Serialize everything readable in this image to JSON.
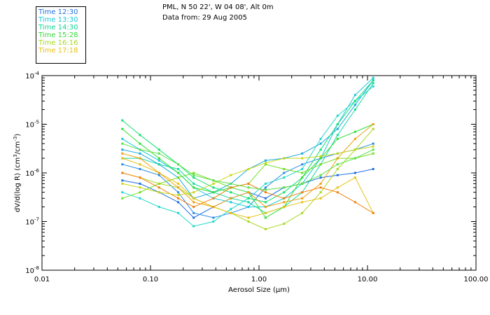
{
  "header": {
    "station": "PML, N 50 22', W 04 08', Alt 0m",
    "date": "Data from: 29 Aug 2005"
  },
  "chart_data": {
    "type": "line",
    "xscale": "log",
    "yscale": "log",
    "xlim": [
      0.01,
      100
    ],
    "ylim_exp": [
      -8,
      -4
    ],
    "xlabel": "Aerosol Size (μm)",
    "ylabel_main": "dV/d(log R) (cm",
    "ylabel_sup1": "3",
    "ylabel_mid": "/cm",
    "ylabel_sup2": "-3",
    "ylabel_end": ")",
    "x_ticks": [
      "0.01",
      "0.10",
      "1.00",
      "10.00",
      "100.00"
    ],
    "y_tick_base": "10",
    "y_tick_exps": [
      "-8",
      "-7",
      "-6",
      "-5",
      "-4"
    ],
    "legend_colors": [
      "#1f6fe0",
      "#18c8d8",
      "#10d890",
      "#38d838",
      "#a8d820",
      "#e8c010"
    ],
    "legend": [
      "Time 12:30",
      "Time 13:30",
      "Time 14:30",
      "Time 15:28",
      "Time 16:16",
      "Time 17:18"
    ],
    "x": [
      0.055,
      0.08,
      0.12,
      0.18,
      0.25,
      0.38,
      0.55,
      0.8,
      1.15,
      1.7,
      2.5,
      3.7,
      5.3,
      7.7,
      11.3
    ],
    "series": [
      {
        "name": "scan 1",
        "color": "#1f6fe0",
        "values": [
          7e-07,
          6e-07,
          4e-07,
          2.5e-07,
          1.2e-07,
          2e-07,
          3e-07,
          4e-07,
          3e-07,
          5e-07,
          6e-07,
          8e-07,
          9e-07,
          1e-06,
          1.2e-06
        ]
      },
      {
        "name": "scan 2",
        "color": "#2a8ae8",
        "values": [
          1.5e-06,
          1.2e-06,
          9e-07,
          4e-07,
          1.5e-07,
          1.2e-07,
          1.5e-07,
          2e-07,
          5e-07,
          1e-06,
          1.5e-06,
          2e-06,
          2.5e-06,
          3e-06,
          4e-06
        ]
      },
      {
        "name": "scan 3",
        "color": "#18a8e0",
        "values": [
          3e-06,
          2.5e-06,
          1.5e-06,
          8e-07,
          3e-07,
          4e-07,
          6e-07,
          1.2e-06,
          1.8e-06,
          2e-06,
          2.5e-06,
          4e-06,
          8e-06,
          2.5e-05,
          8e-05
        ]
      },
      {
        "name": "scan 4",
        "color": "#18c8d8",
        "values": [
          5e-06,
          3e-06,
          1.8e-06,
          1e-06,
          5e-07,
          3e-07,
          2.5e-07,
          2e-07,
          2e-07,
          3e-07,
          6e-07,
          2e-06,
          1e-05,
          4e-05,
          9e-05
        ]
      },
      {
        "name": "scan 5",
        "color": "#20d8c8",
        "values": [
          4e-07,
          3e-07,
          2e-07,
          1.5e-07,
          8e-08,
          1e-07,
          1.8e-07,
          3e-07,
          6e-07,
          8e-07,
          1.2e-06,
          5e-06,
          1.5e-05,
          3e-05,
          6e-05
        ]
      },
      {
        "name": "scan 6",
        "color": "#10d8a0",
        "values": [
          2e-06,
          2e-06,
          1.5e-06,
          1.2e-06,
          6e-07,
          4e-07,
          3e-07,
          2.5e-07,
          1.5e-07,
          2e-07,
          4e-07,
          1.5e-06,
          6e-06,
          2e-05,
          7e-05
        ]
      },
      {
        "name": "scan 7",
        "color": "#10e070",
        "values": [
          1.2e-05,
          6e-06,
          3e-06,
          1.5e-06,
          8e-07,
          5e-07,
          4e-07,
          3e-07,
          2.5e-07,
          4e-07,
          8e-07,
          3e-06,
          1e-05,
          3e-05,
          8e-05
        ]
      },
      {
        "name": "scan 8",
        "color": "#30e030",
        "values": [
          8e-06,
          4e-06,
          2e-06,
          1e-06,
          5e-07,
          4e-07,
          5e-07,
          4e-07,
          1.2e-07,
          2e-07,
          8e-07,
          2e-06,
          5e-06,
          7e-06,
          1e-05
        ]
      },
      {
        "name": "scan 9",
        "color": "#70e020",
        "values": [
          3e-07,
          4e-07,
          6e-07,
          8e-07,
          1e-06,
          7e-07,
          5e-07,
          6e-07,
          1.5e-06,
          1.2e-06,
          1e-06,
          1.5e-06,
          2e-06,
          2e-06,
          2.5e-06
        ]
      },
      {
        "name": "scan 10",
        "color": "#a8d820",
        "values": [
          1e-06,
          8e-07,
          6e-07,
          5e-07,
          3e-07,
          2e-07,
          1.5e-07,
          1e-07,
          7e-08,
          9e-08,
          1.5e-07,
          4e-07,
          1.2e-06,
          3e-06,
          8e-06
        ]
      },
      {
        "name": "scan 11",
        "color": "#e8c010",
        "values": [
          2e-06,
          1.5e-06,
          1e-06,
          6e-07,
          3e-07,
          2e-07,
          1.5e-07,
          1.2e-07,
          1.5e-07,
          2e-07,
          2.5e-07,
          3e-07,
          5e-07,
          8e-07,
          1.5e-07
        ]
      },
      {
        "name": "scan 12",
        "color": "#f08010",
        "values": [
          1e-06,
          8e-07,
          5e-07,
          3e-07,
          2e-07,
          3e-07,
          5e-07,
          6e-07,
          4e-07,
          3e-07,
          4e-07,
          5e-07,
          4e-07,
          2.5e-07,
          1.5e-07
        ]
      },
      {
        "name": "scan 13",
        "color": "#f0a010",
        "values": [
          2.5e-06,
          2e-06,
          1e-06,
          5e-07,
          2.5e-07,
          2e-07,
          3e-07,
          4e-07,
          2e-07,
          2.5e-07,
          3e-07,
          6e-07,
          2e-06,
          5e-06,
          1e-05
        ]
      },
      {
        "name": "scan 14",
        "color": "#c8d818",
        "values": [
          6e-07,
          5e-07,
          4e-07,
          3.5e-07,
          4e-07,
          6e-07,
          9e-07,
          1.2e-06,
          1.6e-06,
          2e-06,
          2e-06,
          2.2e-06,
          2.5e-06,
          3e-06,
          3.5e-06
        ]
      },
      {
        "name": "scan 15",
        "color": "#58e048",
        "values": [
          4e-06,
          3e-06,
          2.5e-06,
          1.5e-06,
          9e-07,
          7e-07,
          6e-07,
          5e-07,
          4.5e-07,
          5e-07,
          6e-07,
          9e-07,
          1.5e-06,
          2e-06,
          3e-06
        ]
      }
    ]
  }
}
